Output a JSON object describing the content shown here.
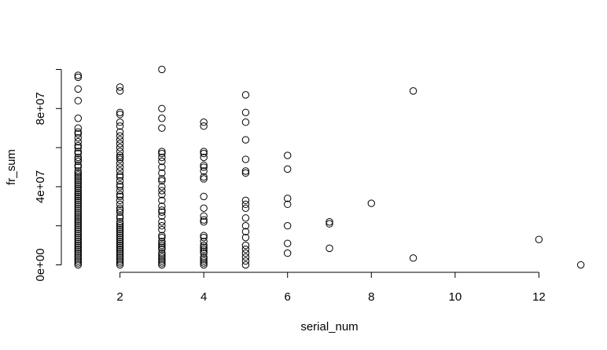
{
  "chart_data": {
    "type": "scatter",
    "title": "",
    "xlabel": "serial_num",
    "ylabel": "fr_sum",
    "xlim": [
      0.6,
      13.4
    ],
    "ylim": [
      -3800000,
      101000000
    ],
    "x_ticks": [
      2,
      4,
      6,
      8,
      10,
      12
    ],
    "x_tick_labels": [
      "2",
      "4",
      "6",
      "8",
      "10",
      "12"
    ],
    "y_ticks": [
      0,
      40000000,
      80000000
    ],
    "y_tick_labels": [
      "0e+00",
      "4e+07",
      "8e+07"
    ],
    "grid": false,
    "legend": "none",
    "marker": "open-circle",
    "series": [
      {
        "points": [
          [
            1,
            97000000
          ],
          [
            1,
            96000000
          ],
          [
            1,
            90000000
          ],
          [
            1,
            84000000
          ],
          [
            1,
            75000000
          ],
          [
            1,
            70000000
          ],
          [
            1,
            68000000
          ],
          [
            1,
            67000000
          ],
          [
            1,
            65000000
          ],
          [
            1,
            63000000
          ],
          [
            1,
            61000000
          ],
          [
            1,
            60000000
          ],
          [
            1,
            58000000
          ],
          [
            1,
            57000000
          ],
          [
            1,
            55000000
          ],
          [
            1,
            54000000
          ],
          [
            1,
            53000000
          ],
          [
            1,
            51000000
          ],
          [
            1,
            50000000
          ],
          [
            1,
            48000000
          ],
          [
            1,
            47000000
          ],
          [
            1,
            46000000
          ],
          [
            1,
            45000000
          ],
          [
            1,
            44000000
          ],
          [
            1,
            43000000
          ],
          [
            1,
            42000000
          ],
          [
            1,
            41000000
          ],
          [
            1,
            40000000
          ],
          [
            1,
            39000000
          ],
          [
            1,
            38000000
          ],
          [
            1,
            37000000
          ],
          [
            1,
            36000000
          ],
          [
            1,
            35000000
          ],
          [
            1,
            34000000
          ],
          [
            1,
            33000000
          ],
          [
            1,
            32000000
          ],
          [
            1,
            31000000
          ],
          [
            1,
            30000000
          ],
          [
            1,
            29000000
          ],
          [
            1,
            28000000
          ],
          [
            1,
            27000000
          ],
          [
            1,
            26000000
          ],
          [
            1,
            25000000
          ],
          [
            1,
            24000000
          ],
          [
            1,
            23000000
          ],
          [
            1,
            22000000
          ],
          [
            1,
            21000000
          ],
          [
            1,
            20000000
          ],
          [
            1,
            19000000
          ],
          [
            1,
            18000000
          ],
          [
            1,
            17000000
          ],
          [
            1,
            16000000
          ],
          [
            1,
            15000000
          ],
          [
            1,
            14000000
          ],
          [
            1,
            13000000
          ],
          [
            1,
            12000000
          ],
          [
            1,
            11000000
          ],
          [
            1,
            10000000
          ],
          [
            1,
            9000000
          ],
          [
            1,
            8000000
          ],
          [
            1,
            7000000
          ],
          [
            1,
            6000000
          ],
          [
            1,
            5000000
          ],
          [
            1,
            4000000
          ],
          [
            1,
            3000000
          ],
          [
            1,
            2000000
          ],
          [
            1,
            1000000
          ],
          [
            1,
            0
          ],
          [
            2,
            91000000
          ],
          [
            2,
            89000000
          ],
          [
            2,
            78000000
          ],
          [
            2,
            77000000
          ],
          [
            2,
            73000000
          ],
          [
            2,
            71000000
          ],
          [
            2,
            68000000
          ],
          [
            2,
            66000000
          ],
          [
            2,
            64000000
          ],
          [
            2,
            62000000
          ],
          [
            2,
            60000000
          ],
          [
            2,
            58000000
          ],
          [
            2,
            56000000
          ],
          [
            2,
            55000000
          ],
          [
            2,
            54000000
          ],
          [
            2,
            52000000
          ],
          [
            2,
            50000000
          ],
          [
            2,
            48000000
          ],
          [
            2,
            46000000
          ],
          [
            2,
            45000000
          ],
          [
            2,
            43000000
          ],
          [
            2,
            41000000
          ],
          [
            2,
            40000000
          ],
          [
            2,
            38000000
          ],
          [
            2,
            36000000
          ],
          [
            2,
            35000000
          ],
          [
            2,
            33000000
          ],
          [
            2,
            31000000
          ],
          [
            2,
            29000000
          ],
          [
            2,
            28000000
          ],
          [
            2,
            27000000
          ],
          [
            2,
            25000000
          ],
          [
            2,
            24000000
          ],
          [
            2,
            22000000
          ],
          [
            2,
            21000000
          ],
          [
            2,
            20000000
          ],
          [
            2,
            19000000
          ],
          [
            2,
            18000000
          ],
          [
            2,
            17000000
          ],
          [
            2,
            16000000
          ],
          [
            2,
            15000000
          ],
          [
            2,
            14000000
          ],
          [
            2,
            13000000
          ],
          [
            2,
            12000000
          ],
          [
            2,
            11000000
          ],
          [
            2,
            10000000
          ],
          [
            2,
            9000000
          ],
          [
            2,
            8000000
          ],
          [
            2,
            7000000
          ],
          [
            2,
            6000000
          ],
          [
            2,
            5000000
          ],
          [
            2,
            4000000
          ],
          [
            2,
            3000000
          ],
          [
            2,
            2000000
          ],
          [
            2,
            1000000
          ],
          [
            2,
            0
          ],
          [
            3,
            100000000
          ],
          [
            3,
            80000000
          ],
          [
            3,
            75000000
          ],
          [
            3,
            70000000
          ],
          [
            3,
            58000000
          ],
          [
            3,
            57000000
          ],
          [
            3,
            55000000
          ],
          [
            3,
            53000000
          ],
          [
            3,
            50000000
          ],
          [
            3,
            47000000
          ],
          [
            3,
            44000000
          ],
          [
            3,
            43000000
          ],
          [
            3,
            40000000
          ],
          [
            3,
            38000000
          ],
          [
            3,
            36000000
          ],
          [
            3,
            33000000
          ],
          [
            3,
            30000000
          ],
          [
            3,
            28000000
          ],
          [
            3,
            27000000
          ],
          [
            3,
            25000000
          ],
          [
            3,
            22000000
          ],
          [
            3,
            20000000
          ],
          [
            3,
            18000000
          ],
          [
            3,
            15000000
          ],
          [
            3,
            14000000
          ],
          [
            3,
            12000000
          ],
          [
            3,
            11000000
          ],
          [
            3,
            10000000
          ],
          [
            3,
            9000000
          ],
          [
            3,
            8000000
          ],
          [
            3,
            6000000
          ],
          [
            3,
            5000000
          ],
          [
            3,
            4000000
          ],
          [
            3,
            3000000
          ],
          [
            3,
            2000000
          ],
          [
            3,
            1000000
          ],
          [
            3,
            0
          ],
          [
            4,
            73000000
          ],
          [
            4,
            71000000
          ],
          [
            4,
            58000000
          ],
          [
            4,
            57000000
          ],
          [
            4,
            55000000
          ],
          [
            4,
            51000000
          ],
          [
            4,
            50000000
          ],
          [
            4,
            48000000
          ],
          [
            4,
            45000000
          ],
          [
            4,
            44000000
          ],
          [
            4,
            35000000
          ],
          [
            4,
            29000000
          ],
          [
            4,
            25000000
          ],
          [
            4,
            23000000
          ],
          [
            4,
            22000000
          ],
          [
            4,
            15000000
          ],
          [
            4,
            14000000
          ],
          [
            4,
            12000000
          ],
          [
            4,
            10000000
          ],
          [
            4,
            9000000
          ],
          [
            4,
            8000000
          ],
          [
            4,
            7000000
          ],
          [
            4,
            6000000
          ],
          [
            4,
            4000000
          ],
          [
            4,
            3000000
          ],
          [
            4,
            2000000
          ],
          [
            4,
            1000000
          ],
          [
            4,
            0
          ],
          [
            5,
            87000000
          ],
          [
            5,
            78000000
          ],
          [
            5,
            73000000
          ],
          [
            5,
            64000000
          ],
          [
            5,
            54000000
          ],
          [
            5,
            48000000
          ],
          [
            5,
            47000000
          ],
          [
            5,
            33000000
          ],
          [
            5,
            31000000
          ],
          [
            5,
            29000000
          ],
          [
            5,
            24000000
          ],
          [
            5,
            20000000
          ],
          [
            5,
            17000000
          ],
          [
            5,
            14000000
          ],
          [
            5,
            10000000
          ],
          [
            5,
            8000000
          ],
          [
            5,
            6000000
          ],
          [
            5,
            4000000
          ],
          [
            5,
            2000000
          ],
          [
            5,
            0
          ],
          [
            6,
            56000000
          ],
          [
            6,
            49000000
          ],
          [
            6,
            34000000
          ],
          [
            6,
            31000000
          ],
          [
            6,
            20000000
          ],
          [
            6,
            11000000
          ],
          [
            6,
            6000000
          ],
          [
            7,
            22000000
          ],
          [
            7,
            21000000
          ],
          [
            7,
            8500000
          ],
          [
            8,
            31500000
          ],
          [
            9,
            89000000
          ],
          [
            9,
            3500000
          ],
          [
            12,
            13000000
          ],
          [
            13,
            0
          ]
        ]
      }
    ]
  }
}
